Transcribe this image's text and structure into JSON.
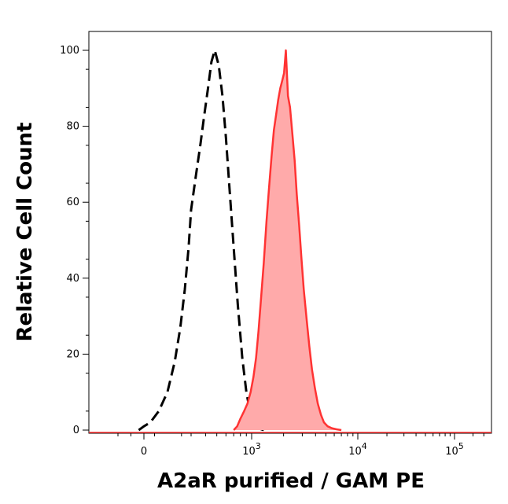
{
  "chart_data": {
    "type": "area",
    "title": "",
    "xlabel": "A2aR purified / GAM PE",
    "ylabel": "Relative Cell Count",
    "x_scale": "biexponential",
    "ylim": [
      0,
      100
    ],
    "x_ticks": [
      {
        "label": "0",
        "value": 0
      },
      {
        "label": "10",
        "exp": "3",
        "value": 1000
      },
      {
        "label": "10",
        "exp": "4",
        "value": 10000
      },
      {
        "label": "10",
        "exp": "5",
        "value": 100000
      }
    ],
    "y_ticks": [
      0,
      20,
      40,
      60,
      80,
      100
    ],
    "grid": false,
    "legend": "none",
    "series": [
      {
        "role": "isotype-control",
        "style": "dashed",
        "color": "#000000",
        "x": [
          -20,
          0,
          30,
          70,
          110,
          150,
          190,
          230,
          270,
          300,
          330,
          360,
          390,
          420,
          450,
          480,
          520,
          560,
          600,
          650,
          700,
          760,
          830,
          900,
          980,
          1060,
          1150,
          1300
        ],
        "y": [
          0,
          1,
          2,
          5,
          10,
          18,
          27,
          37,
          48,
          58,
          67,
          75,
          83,
          90,
          97,
          100,
          96,
          88,
          77,
          62,
          48,
          33,
          19,
          10,
          4,
          1,
          0.5,
          0
        ]
      },
      {
        "role": "stained",
        "style": "filled",
        "color": "#ff3333",
        "fill": "#ffaaaa",
        "x": [
          700,
          750,
          800,
          860,
          920,
          980,
          1040,
          1100,
          1160,
          1220,
          1300,
          1380,
          1460,
          1540,
          1620,
          1700,
          1780,
          1860,
          1940,
          2020,
          2100,
          2200,
          2300,
          2420,
          2540,
          2660,
          2800,
          2950,
          3100,
          3300,
          3500,
          3700,
          3950,
          4200,
          4500,
          4800,
          5200,
          5700,
          6300,
          7000
        ],
        "y": [
          0,
          1,
          3,
          5,
          7,
          10,
          14,
          19,
          26,
          34,
          44,
          55,
          64,
          72,
          79,
          83,
          87,
          90,
          92,
          94,
          100,
          88,
          85,
          78,
          71,
          62,
          54,
          45,
          37,
          29,
          22,
          16,
          11,
          7,
          4,
          2,
          1,
          0.5,
          0.2,
          0
        ]
      }
    ]
  }
}
